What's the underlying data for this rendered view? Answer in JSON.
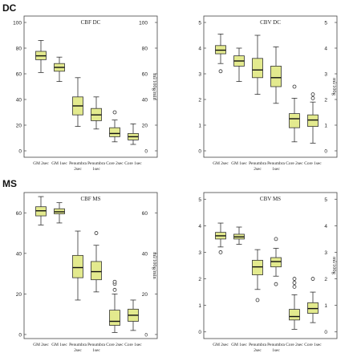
{
  "sections": [
    {
      "label": "DC"
    },
    {
      "label": "MS"
    }
  ],
  "chart_data": [
    {
      "type": "box",
      "title": "CBF DC",
      "ylabel_right": "ml/100g/min",
      "ylim": [
        -5,
        105
      ],
      "yticks": [
        0,
        20,
        40,
        60,
        80,
        100
      ],
      "categories": [
        "GM 2sec",
        "GM 1sec",
        "Penumbra 2sec",
        "Penumbra 1sec",
        "Core 2sec",
        "Core 1sec"
      ],
      "boxes": [
        {
          "min": 61,
          "q1": 71,
          "median": 74,
          "q3": 77.5,
          "max": 86,
          "outliers": []
        },
        {
          "min": 54,
          "q1": 62,
          "median": 65,
          "q3": 68,
          "max": 73,
          "outliers": []
        },
        {
          "min": 19,
          "q1": 28,
          "median": 35,
          "q3": 42,
          "max": 57,
          "outliers": []
        },
        {
          "min": 17,
          "q1": 23.5,
          "median": 28,
          "q3": 33,
          "max": 42,
          "outliers": []
        },
        {
          "min": 7,
          "q1": 11,
          "median": 13.5,
          "q3": 18,
          "max": 24,
          "outliers": [
            30
          ]
        },
        {
          "min": 5,
          "q1": 8.5,
          "median": 11,
          "q3": 13.5,
          "max": 21,
          "outliers": []
        }
      ]
    },
    {
      "type": "box",
      "title": "CBV DC",
      "ylabel_right": "ml/100g",
      "ylim": [
        -0.25,
        5.25
      ],
      "yticks": [
        0,
        1,
        2,
        3,
        4,
        5
      ],
      "categories": [
        "GM 2sec",
        "GM 1sec",
        "Penumbra 2sec",
        "Penumbra 1sec",
        "Core 2sec",
        "Core 1sec"
      ],
      "boxes": [
        {
          "min": 3.4,
          "q1": 3.78,
          "median": 3.92,
          "q3": 4.1,
          "max": 4.55,
          "outliers": [
            3.1
          ]
        },
        {
          "min": 2.7,
          "q1": 3.3,
          "median": 3.5,
          "q3": 3.7,
          "max": 4.0,
          "outliers": []
        },
        {
          "min": 2.2,
          "q1": 2.85,
          "median": 3.15,
          "q3": 3.6,
          "max": 4.5,
          "outliers": []
        },
        {
          "min": 1.85,
          "q1": 2.5,
          "median": 2.85,
          "q3": 3.3,
          "max": 4.05,
          "outliers": []
        },
        {
          "min": 0.35,
          "q1": 0.9,
          "median": 1.25,
          "q3": 1.45,
          "max": 2.05,
          "outliers": [
            2.5
          ]
        },
        {
          "min": 0.3,
          "q1": 0.95,
          "median": 1.2,
          "q3": 1.4,
          "max": 1.9,
          "outliers": [
            2.05,
            2.2
          ]
        }
      ]
    },
    {
      "type": "box",
      "title": "CBF MS",
      "ylabel_right": "ml/100g/min",
      "ylim": [
        -2,
        70
      ],
      "yticks": [
        0,
        20,
        40,
        60
      ],
      "categories": [
        "GM 2sec",
        "GM 1sec",
        "Penumbra 2sec",
        "Penumbra 1sec",
        "Core 2sec",
        "Core 1sec"
      ],
      "boxes": [
        {
          "min": 54,
          "q1": 58.5,
          "median": 61,
          "q3": 63,
          "max": 68,
          "outliers": []
        },
        {
          "min": 55,
          "q1": 59.5,
          "median": 60.5,
          "q3": 62,
          "max": 65,
          "outliers": []
        },
        {
          "min": 17,
          "q1": 28,
          "median": 33,
          "q3": 39,
          "max": 51,
          "outliers": []
        },
        {
          "min": 21,
          "q1": 27,
          "median": 31,
          "q3": 36,
          "max": 44,
          "outliers": [
            50
          ]
        },
        {
          "min": 1,
          "q1": 4.5,
          "median": 6.5,
          "q3": 12,
          "max": 20,
          "outliers": [
            22,
            25,
            26
          ]
        },
        {
          "min": 2,
          "q1": 6.5,
          "median": 9.5,
          "q3": 12.5,
          "max": 17,
          "outliers": []
        }
      ]
    },
    {
      "type": "box",
      "title": "CBV MS",
      "ylabel_right": "ml/100g",
      "ylim": [
        -0.25,
        5.25
      ],
      "yticks": [
        0,
        1,
        2,
        3,
        4,
        5
      ],
      "categories": [
        "GM 2sec",
        "GM 1sec",
        "Penumbra 2sec",
        "Penumbra 1sec",
        "Core 2sec",
        "Core 1sec"
      ],
      "boxes": [
        {
          "min": 3.2,
          "q1": 3.5,
          "median": 3.62,
          "q3": 3.75,
          "max": 4.1,
          "outliers": [
            3.0
          ]
        },
        {
          "min": 3.3,
          "q1": 3.5,
          "median": 3.58,
          "q3": 3.68,
          "max": 3.95,
          "outliers": []
        },
        {
          "min": 1.6,
          "q1": 2.15,
          "median": 2.45,
          "q3": 2.7,
          "max": 3.1,
          "outliers": [
            1.2
          ]
        },
        {
          "min": 2.1,
          "q1": 2.45,
          "median": 2.65,
          "q3": 2.8,
          "max": 3.15,
          "outliers": [
            3.5,
            1.8
          ]
        },
        {
          "min": 0.1,
          "q1": 0.45,
          "median": 0.58,
          "q3": 0.85,
          "max": 1.4,
          "outliers": [
            1.7,
            1.85,
            2.0
          ]
        },
        {
          "min": 0.35,
          "q1": 0.7,
          "median": 0.88,
          "q3": 1.1,
          "max": 1.5,
          "outliers": [
            2.0
          ]
        }
      ]
    }
  ],
  "colors": {
    "box_fill": "#e3ea8e",
    "box_stroke": "#333333",
    "frame": "#444444",
    "text": "#222222"
  }
}
